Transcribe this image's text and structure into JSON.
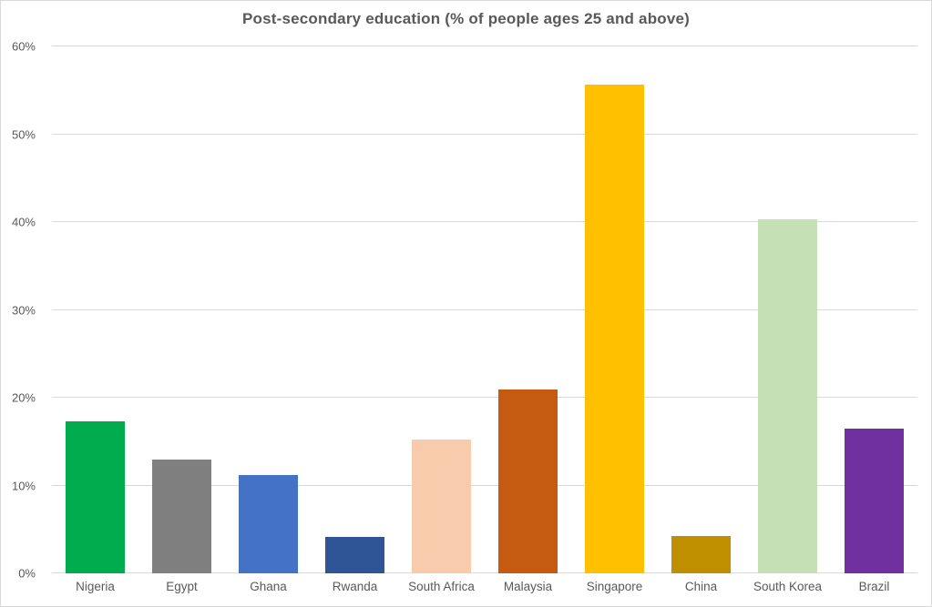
{
  "chart_data": {
    "type": "bar",
    "title": "Post-secondary education (% of people ages 25 and above)",
    "categories": [
      "Nigeria",
      "Egypt",
      "Ghana",
      "Rwanda",
      "South Africa",
      "Malaysia",
      "Singapore",
      "China",
      "South Korea",
      "Brazil"
    ],
    "values": [
      17.3,
      13.0,
      11.2,
      4.1,
      15.2,
      20.9,
      55.7,
      4.3,
      40.3,
      16.5
    ],
    "bar_colors": [
      "#00AC4E",
      "#7F7F7F",
      "#4472C4",
      "#2F5597",
      "#F8CBAD",
      "#C55A11",
      "#FFC000",
      "#BF8F00",
      "#C5E0B4",
      "#7030A0"
    ],
    "xlabel": "",
    "ylabel": "",
    "ylim": [
      0,
      60
    ],
    "yticks": [
      0,
      10,
      20,
      30,
      40,
      50,
      60
    ],
    "ytick_labels": [
      "0%",
      "10%",
      "20%",
      "30%",
      "40%",
      "50%",
      "60%"
    ],
    "grid": true,
    "legend": false
  },
  "style": {
    "background": "#FFFFFF",
    "border_color": "#D9D9D9",
    "gridline_color": "#D9D9D9",
    "axis_line_color": "#D9D9D9",
    "title_color": "#595959",
    "text_color": "#595959"
  }
}
